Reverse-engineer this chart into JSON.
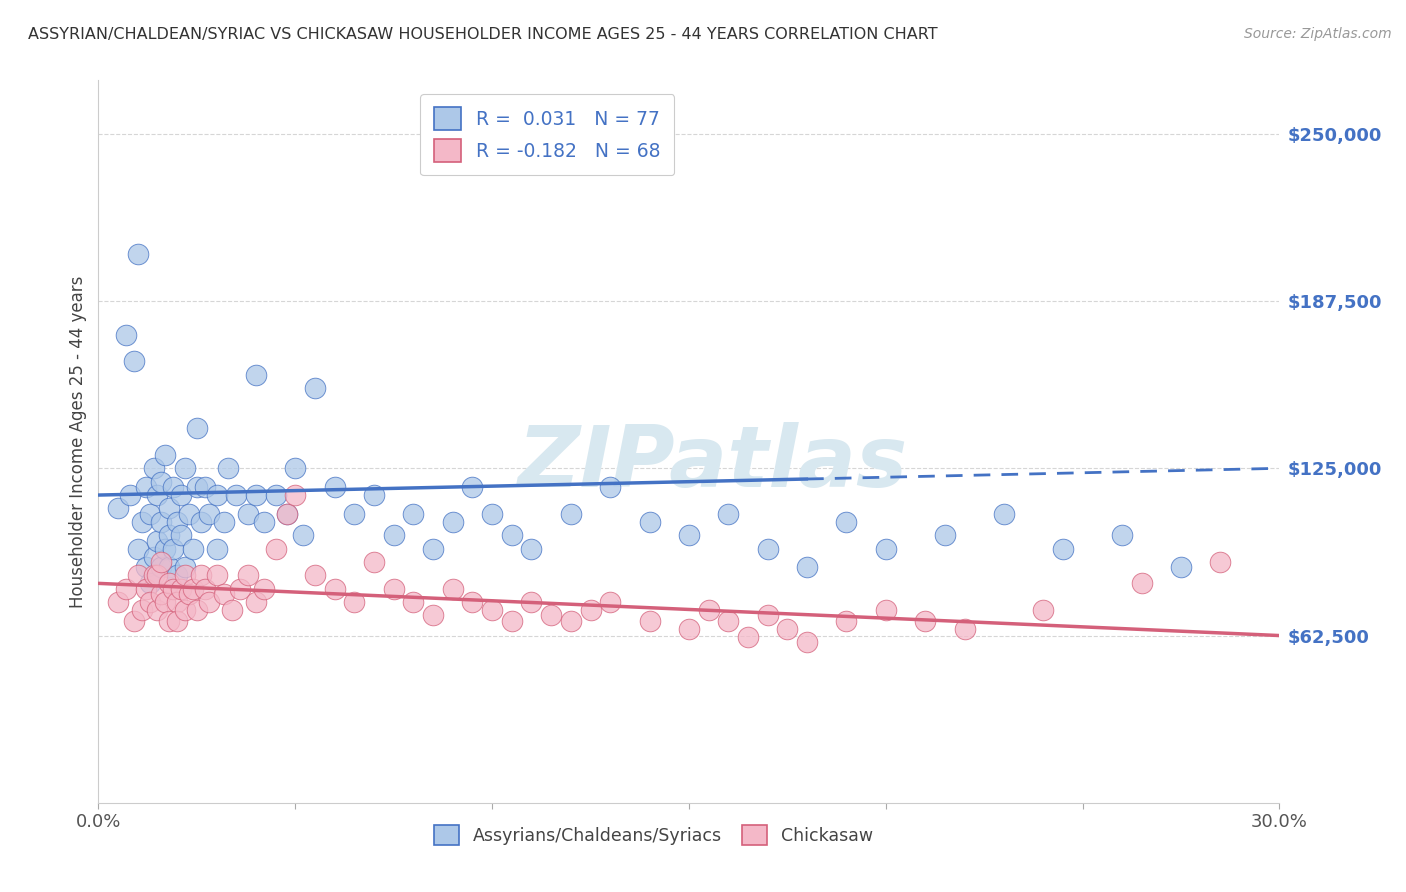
{
  "title": "ASSYRIAN/CHALDEAN/SYRIAC VS CHICKASAW HOUSEHOLDER INCOME AGES 25 - 44 YEARS CORRELATION CHART",
  "source": "Source: ZipAtlas.com",
  "ylabel": "Householder Income Ages 25 - 44 years",
  "xlim": [
    0.0,
    0.3
  ],
  "ylim": [
    0,
    270000
  ],
  "yticks": [
    62500,
    125000,
    187500,
    250000
  ],
  "ytick_labels": [
    "$62,500",
    "$125,000",
    "$187,500",
    "$250,000"
  ],
  "xticks": [
    0.0,
    0.05,
    0.1,
    0.15,
    0.2,
    0.25,
    0.3
  ],
  "blue_color": "#adc8e8",
  "blue_edge_color": "#4472c4",
  "blue_line_color": "#4472c4",
  "pink_color": "#f4b8c8",
  "pink_edge_color": "#d4607a",
  "pink_line_color": "#d4607a",
  "text_color": "#4472c4",
  "axis_color": "#cccccc",
  "watermark_color": "#d8e8f0",
  "legend_label_blue": "Assyrians/Chaldeans/Syriacs",
  "legend_label_pink": "Chickasaw",
  "blue_scatter_x": [
    0.005,
    0.007,
    0.008,
    0.009,
    0.01,
    0.01,
    0.011,
    0.012,
    0.012,
    0.013,
    0.013,
    0.014,
    0.014,
    0.015,
    0.015,
    0.016,
    0.016,
    0.016,
    0.017,
    0.017,
    0.018,
    0.018,
    0.018,
    0.019,
    0.019,
    0.02,
    0.02,
    0.021,
    0.021,
    0.022,
    0.022,
    0.023,
    0.024,
    0.025,
    0.025,
    0.026,
    0.027,
    0.028,
    0.03,
    0.03,
    0.032,
    0.033,
    0.035,
    0.038,
    0.04,
    0.04,
    0.042,
    0.045,
    0.048,
    0.05,
    0.052,
    0.055,
    0.06,
    0.065,
    0.07,
    0.075,
    0.08,
    0.085,
    0.09,
    0.095,
    0.1,
    0.105,
    0.11,
    0.12,
    0.13,
    0.14,
    0.15,
    0.16,
    0.17,
    0.18,
    0.19,
    0.2,
    0.215,
    0.23,
    0.245,
    0.26,
    0.275
  ],
  "blue_scatter_y": [
    110000,
    175000,
    115000,
    165000,
    205000,
    95000,
    105000,
    88000,
    118000,
    82000,
    108000,
    92000,
    125000,
    115000,
    98000,
    88000,
    120000,
    105000,
    95000,
    130000,
    110000,
    100000,
    88000,
    118000,
    95000,
    105000,
    85000,
    115000,
    100000,
    88000,
    125000,
    108000,
    95000,
    118000,
    140000,
    105000,
    118000,
    108000,
    115000,
    95000,
    105000,
    125000,
    115000,
    108000,
    160000,
    115000,
    105000,
    115000,
    108000,
    125000,
    100000,
    155000,
    118000,
    108000,
    115000,
    100000,
    108000,
    95000,
    105000,
    118000,
    108000,
    100000,
    95000,
    108000,
    118000,
    105000,
    100000,
    108000,
    95000,
    88000,
    105000,
    95000,
    100000,
    108000,
    95000,
    100000,
    88000
  ],
  "pink_scatter_x": [
    0.005,
    0.007,
    0.009,
    0.01,
    0.011,
    0.012,
    0.013,
    0.014,
    0.015,
    0.015,
    0.016,
    0.016,
    0.017,
    0.018,
    0.018,
    0.019,
    0.02,
    0.02,
    0.021,
    0.022,
    0.022,
    0.023,
    0.024,
    0.025,
    0.026,
    0.027,
    0.028,
    0.03,
    0.032,
    0.034,
    0.036,
    0.038,
    0.04,
    0.042,
    0.045,
    0.048,
    0.05,
    0.055,
    0.06,
    0.065,
    0.07,
    0.075,
    0.08,
    0.085,
    0.09,
    0.095,
    0.1,
    0.105,
    0.11,
    0.115,
    0.12,
    0.125,
    0.13,
    0.14,
    0.15,
    0.155,
    0.16,
    0.165,
    0.17,
    0.175,
    0.18,
    0.19,
    0.2,
    0.21,
    0.22,
    0.24,
    0.265,
    0.285
  ],
  "pink_scatter_y": [
    75000,
    80000,
    68000,
    85000,
    72000,
    80000,
    75000,
    85000,
    72000,
    85000,
    78000,
    90000,
    75000,
    82000,
    68000,
    80000,
    75000,
    68000,
    80000,
    72000,
    85000,
    78000,
    80000,
    72000,
    85000,
    80000,
    75000,
    85000,
    78000,
    72000,
    80000,
    85000,
    75000,
    80000,
    95000,
    108000,
    115000,
    85000,
    80000,
    75000,
    90000,
    80000,
    75000,
    70000,
    80000,
    75000,
    72000,
    68000,
    75000,
    70000,
    68000,
    72000,
    75000,
    68000,
    65000,
    72000,
    68000,
    62000,
    70000,
    65000,
    60000,
    68000,
    72000,
    68000,
    65000,
    72000,
    82000,
    90000
  ],
  "blue_line_solid_end": 0.18,
  "blue_line_dash_start": 0.18
}
